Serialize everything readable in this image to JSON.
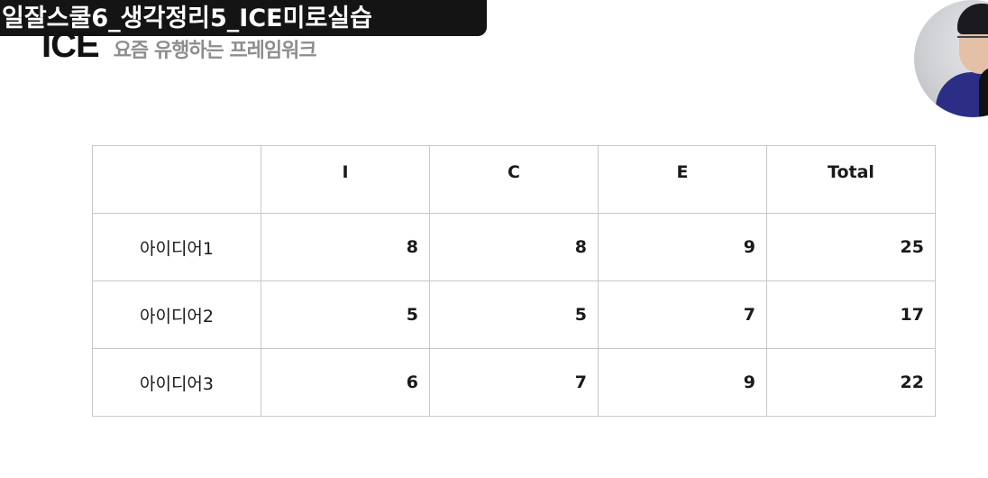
{
  "overlay_title": "일잘스쿨6_생각정리5_ICE미로실습",
  "heading": {
    "main": "ICE",
    "sub": "요즘 유행하는 프레임워크"
  },
  "table": {
    "headers": [
      "",
      "I",
      "C",
      "E",
      "Total"
    ],
    "rows": [
      {
        "label": "아이디어1",
        "values": [
          "8",
          "8",
          "9",
          "25"
        ]
      },
      {
        "label": "아이디어2",
        "values": [
          "5",
          "5",
          "7",
          "17"
        ]
      },
      {
        "label": "아이디어3",
        "values": [
          "6",
          "7",
          "9",
          "22"
        ]
      }
    ]
  },
  "webcam_icon": "person-webcam-icon"
}
